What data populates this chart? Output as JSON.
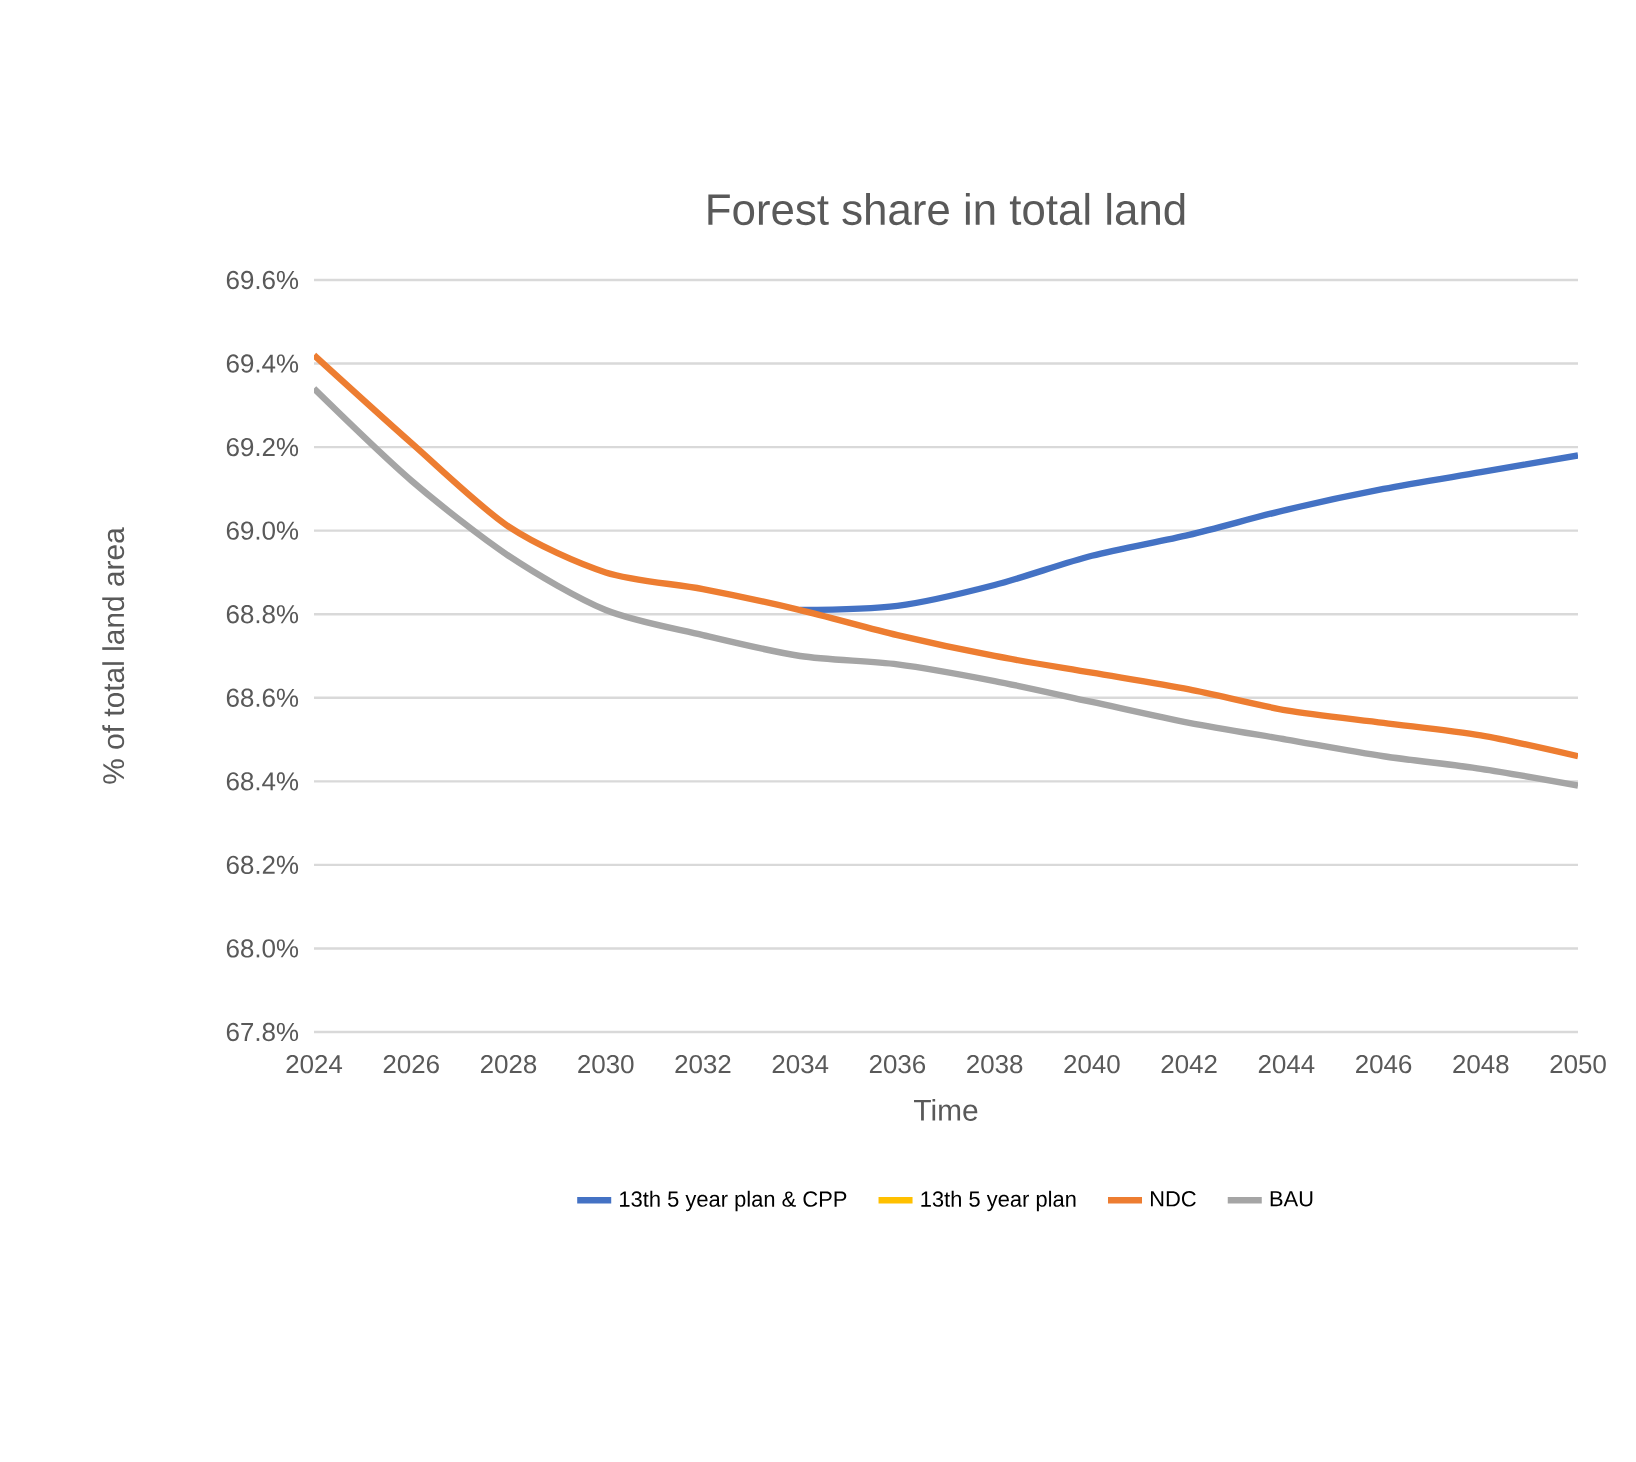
{
  "chart_data": {
    "type": "line",
    "title": "Forest share in total land",
    "xlabel": "Time",
    "ylabel": "% of total land area",
    "x": [
      2024,
      2026,
      2028,
      2030,
      2032,
      2034,
      2036,
      2038,
      2040,
      2042,
      2044,
      2046,
      2048,
      2050
    ],
    "series": [
      {
        "name": "13th 5 year plan & CPP",
        "color": "#4472c4",
        "values": [
          null,
          null,
          null,
          null,
          null,
          68.81,
          68.82,
          68.87,
          68.94,
          68.99,
          69.05,
          69.1,
          69.14,
          69.18
        ]
      },
      {
        "name": "13th 5 year plan",
        "color": "#ffc000",
        "values": [
          null,
          null,
          null,
          null,
          null,
          null,
          null,
          null,
          null,
          null,
          null,
          null,
          null,
          null
        ]
      },
      {
        "name": "NDC",
        "color": "#ed7d31",
        "values": [
          69.42,
          69.21,
          69.01,
          68.9,
          68.86,
          68.81,
          68.75,
          68.7,
          68.66,
          68.62,
          68.57,
          68.54,
          68.51,
          68.46
        ]
      },
      {
        "name": "BAU",
        "color": "#a5a5a5",
        "values": [
          69.34,
          69.12,
          68.94,
          68.81,
          68.75,
          68.7,
          68.68,
          68.64,
          68.59,
          68.54,
          68.5,
          68.46,
          68.43,
          68.39
        ]
      }
    ],
    "xlim": [
      2024,
      2050
    ],
    "xticks": [
      2024,
      2026,
      2028,
      2030,
      2032,
      2034,
      2036,
      2038,
      2040,
      2042,
      2044,
      2046,
      2048,
      2050
    ],
    "ylim": [
      67.8,
      69.6
    ],
    "yticks": [
      {
        "value": 67.8,
        "label": "67.8%"
      },
      {
        "value": 68.0,
        "label": "68.0%"
      },
      {
        "value": 68.2,
        "label": "68.2%"
      },
      {
        "value": 68.4,
        "label": "68.4%"
      },
      {
        "value": 68.6,
        "label": "68.6%"
      },
      {
        "value": 68.8,
        "label": "68.8%"
      },
      {
        "value": 69.0,
        "label": "69.0%"
      },
      {
        "value": 69.2,
        "label": "69.2%"
      },
      {
        "value": 69.4,
        "label": "69.4%"
      },
      {
        "value": 69.6,
        "label": "69.6%"
      }
    ],
    "grid": "y",
    "legend": "bottom",
    "marker": "none",
    "line_style": "solid"
  }
}
